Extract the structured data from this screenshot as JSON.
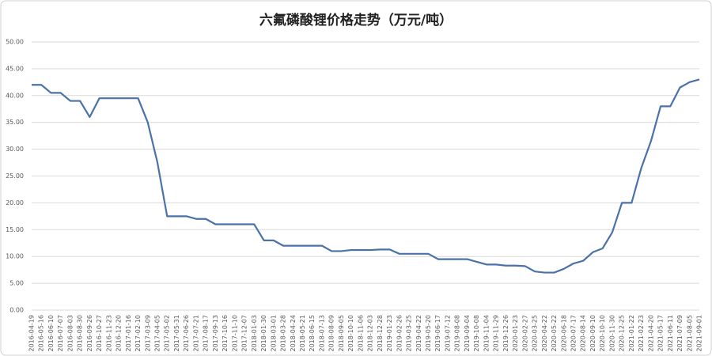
{
  "chart_data": {
    "type": "line",
    "title": "六氟磷酸锂价格走势（万元/吨）",
    "x": [
      "2016-04-19",
      "2016-05-16",
      "2016-06-10",
      "2016-07-07",
      "2016-08-03",
      "2016-08-30",
      "2016-09-26",
      "2016-10-27",
      "2016-11-23",
      "2016-12-20",
      "2017-01-16",
      "2017-02-10",
      "2017-03-09",
      "2017-04-05",
      "2017-05-02",
      "2017-05-31",
      "2017-06-26",
      "2017-07-21",
      "2017-08-17",
      "2017-09-13",
      "2017-10-16",
      "2017-11-10",
      "2017-12-07",
      "2018-01-03",
      "2018-01-30",
      "2018-03-01",
      "2018-03-28",
      "2018-04-24",
      "2018-05-21",
      "2018-06-15",
      "2018-07-13",
      "2018-08-09",
      "2018-09-05",
      "2018-10-10",
      "2018-11-06",
      "2018-12-03",
      "2018-12-28",
      "2019-01-23",
      "2019-02-26",
      "2019-03-25",
      "2019-04-22",
      "2019-05-20",
      "2019-06-17",
      "2019-07-12",
      "2019-08-08",
      "2019-09-04",
      "2019-10-08",
      "2019-11-04",
      "2019-11-29",
      "2019-12-26",
      "2020-01-23",
      "2020-02-27",
      "2020-03-25",
      "2020-04-22",
      "2020-05-22",
      "2020-06-18",
      "2020-07-17",
      "2020-08-14",
      "2020-09-10",
      "2020-10-10",
      "2020-11-30",
      "2020-12-25",
      "2021-01-22",
      "2021-02-23",
      "2021-04-20",
      "2021-05-17",
      "2021-06-11",
      "2021-07-09",
      "2021-08-05",
      "2021-09-01"
    ],
    "series": [
      {
        "color": "#4a72a8",
        "values": [
          42,
          42,
          40.5,
          40.5,
          39,
          39,
          36,
          39.5,
          39.5,
          39.5,
          39.5,
          39.5,
          35,
          27.5,
          17.5,
          17.5,
          17.5,
          17,
          17,
          16,
          16,
          16,
          16,
          16,
          13,
          13,
          12,
          12,
          12,
          12,
          12,
          11,
          11,
          11.2,
          11.2,
          11.2,
          11.3,
          11.3,
          10.5,
          10.5,
          10.5,
          10.5,
          9.5,
          9.5,
          9.5,
          9.5,
          9,
          8.5,
          8.5,
          8.3,
          8.3,
          8.2,
          7.2,
          7,
          7,
          7.7,
          8.7,
          9.2,
          10.8,
          11.5,
          14.5,
          20,
          20,
          26.5,
          31.5,
          38,
          38,
          41.5,
          42.5,
          43
        ]
      }
    ],
    "ylim": [
      0,
      50
    ],
    "yticks": [
      {
        "value": 0,
        "label": "0.00"
      },
      {
        "value": 5,
        "label": "5.00"
      },
      {
        "value": 10,
        "label": "10.00"
      },
      {
        "value": 15,
        "label": "15.00"
      },
      {
        "value": 20,
        "label": "20.00"
      },
      {
        "value": 25,
        "label": "25.00"
      },
      {
        "value": 30,
        "label": "30.00"
      },
      {
        "value": 35,
        "label": "35.00"
      },
      {
        "value": 40,
        "label": "40.00"
      },
      {
        "value": 45,
        "label": "45.00"
      },
      {
        "value": 50,
        "label": "50.00"
      }
    ],
    "grid": true
  }
}
